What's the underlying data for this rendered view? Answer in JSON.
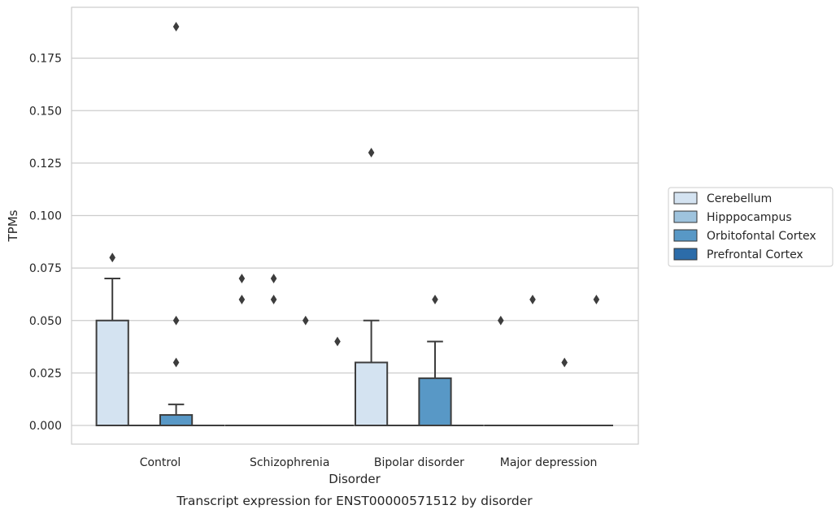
{
  "chart_data": {
    "type": "boxplot",
    "caption": "Transcript expression for ENST00000571512 by disorder",
    "xlabel": "Disorder",
    "ylabel": "TPMs",
    "ylim": [
      -0.009,
      0.199
    ],
    "yticks": [
      "0.000",
      "0.025",
      "0.050",
      "0.075",
      "0.100",
      "0.125",
      "0.150",
      "0.175"
    ],
    "ytick_values": [
      0,
      0.025,
      0.05,
      0.075,
      0.1,
      0.125,
      0.15,
      0.175
    ],
    "grid": "horizontal",
    "legend_position": "right",
    "categories": [
      "Control",
      "Schizophrenia",
      "Bipolar disorder",
      "Major depression"
    ],
    "series": [
      {
        "name": "Cerebellum",
        "color": "#d4e3f1",
        "boxes": [
          {
            "q1": 0,
            "median": 0,
            "q3": 0.05,
            "whisker_low": 0,
            "whisker_high": 0.07,
            "outliers": [
              0.08
            ]
          },
          {
            "q1": 0,
            "median": 0,
            "q3": 0,
            "whisker_low": 0,
            "whisker_high": 0,
            "outliers": [
              0.06,
              0.07
            ]
          },
          {
            "q1": 0,
            "median": 0,
            "q3": 0.03,
            "whisker_low": 0,
            "whisker_high": 0.05,
            "outliers": [
              0.13
            ]
          },
          {
            "q1": 0,
            "median": 0,
            "q3": 0,
            "whisker_low": 0,
            "whisker_high": 0,
            "outliers": [
              0.05
            ]
          }
        ]
      },
      {
        "name": "Hipppocampus",
        "color": "#9ec3dd",
        "boxes": [
          {
            "q1": 0,
            "median": 0,
            "q3": 0,
            "whisker_low": 0,
            "whisker_high": 0,
            "outliers": []
          },
          {
            "q1": 0,
            "median": 0,
            "q3": 0,
            "whisker_low": 0,
            "whisker_high": 0,
            "outliers": [
              0.06,
              0.07
            ]
          },
          {
            "q1": 0,
            "median": 0,
            "q3": 0,
            "whisker_low": 0,
            "whisker_high": 0,
            "outliers": []
          },
          {
            "q1": 0,
            "median": 0,
            "q3": 0,
            "whisker_low": 0,
            "whisker_high": 0,
            "outliers": [
              0.06
            ]
          }
        ]
      },
      {
        "name": "Orbitofontal Cortex",
        "color": "#5898c6",
        "boxes": [
          {
            "q1": 0,
            "median": 0,
            "q3": 0.005,
            "whisker_low": 0,
            "whisker_high": 0.01,
            "outliers": [
              0.03,
              0.05,
              0.19
            ]
          },
          {
            "q1": 0,
            "median": 0,
            "q3": 0,
            "whisker_low": 0,
            "whisker_high": 0,
            "outliers": [
              0.05
            ]
          },
          {
            "q1": 0,
            "median": 0,
            "q3": 0.0225,
            "whisker_low": 0,
            "whisker_high": 0.04,
            "outliers": [
              0.06
            ]
          },
          {
            "q1": 0,
            "median": 0,
            "q3": 0,
            "whisker_low": 0,
            "whisker_high": 0,
            "outliers": [
              0.03
            ]
          }
        ]
      },
      {
        "name": "Prefrontal Cortex",
        "color": "#2c6ca9",
        "boxes": [
          {
            "q1": 0,
            "median": 0,
            "q3": 0,
            "whisker_low": 0,
            "whisker_high": 0,
            "outliers": []
          },
          {
            "q1": 0,
            "median": 0,
            "q3": 0,
            "whisker_low": 0,
            "whisker_high": 0,
            "outliers": [
              0.04
            ]
          },
          {
            "q1": 0,
            "median": 0,
            "q3": 0,
            "whisker_low": 0,
            "whisker_high": 0,
            "outliers": []
          },
          {
            "q1": 0,
            "median": 0,
            "q3": 0,
            "whisker_low": 0,
            "whisker_high": 0,
            "outliers": [
              0.06
            ]
          }
        ]
      }
    ]
  }
}
